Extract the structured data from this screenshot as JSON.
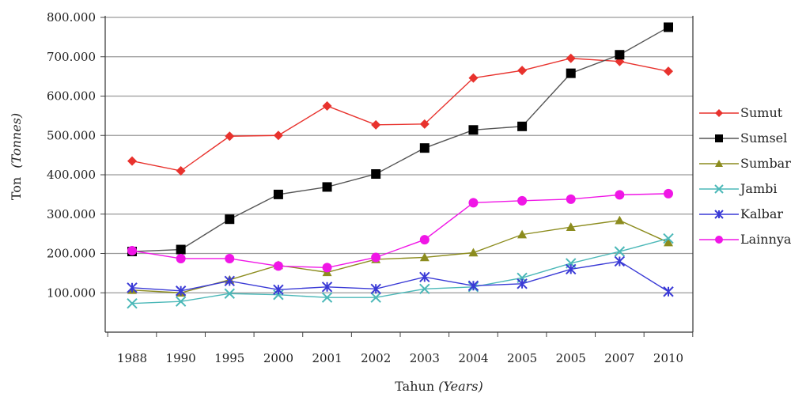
{
  "chart_data": {
    "type": "line",
    "title": "",
    "xlabel": "Tahun",
    "xlabel_italic": "(Years)",
    "ylabel": "Ton",
    "ylabel_italic": "(Tonnes)",
    "categories": [
      "1988",
      "1990",
      "1995",
      "2000",
      "2001",
      "2002",
      "2003",
      "2004",
      "2005",
      "2005",
      "2007",
      "2010"
    ],
    "ylim": [
      0,
      800000
    ],
    "yticks": [
      100000,
      200000,
      300000,
      400000,
      500000,
      600000,
      700000,
      800000
    ],
    "ytick_labels": [
      "100.000",
      "200.000",
      "300.000",
      "400.000",
      "500.000",
      "600.000",
      "700.000",
      "800.000"
    ],
    "grid": true,
    "legend_position": "right",
    "series": [
      {
        "name": "Sumut",
        "color": "#e8322d",
        "marker": "diamond",
        "values": [
          435000,
          410000,
          498000,
          500000,
          575000,
          527000,
          529000,
          646000,
          665000,
          696000,
          688000,
          663000
        ]
      },
      {
        "name": "Sumsel",
        "color": "#000000",
        "marker": "square",
        "values": [
          205000,
          210000,
          287000,
          350000,
          369000,
          402000,
          468000,
          514000,
          523000,
          658000,
          705000,
          775000
        ]
      },
      {
        "name": "Sumbar",
        "color": "#8c8c1e",
        "marker": "triangle",
        "values": [
          107000,
          100000,
          133000,
          170000,
          152000,
          185000,
          190000,
          202000,
          248000,
          267000,
          284000,
          228000
        ]
      },
      {
        "name": "Jambi",
        "color": "#4bb8b8",
        "marker": "x",
        "values": [
          73000,
          78000,
          98000,
          95000,
          88000,
          88000,
          110000,
          115000,
          138000,
          175000,
          205000,
          238000
        ]
      },
      {
        "name": "Kalbar",
        "color": "#3a3ad6",
        "marker": "star",
        "values": [
          113000,
          105000,
          130000,
          108000,
          115000,
          110000,
          140000,
          118000,
          123000,
          160000,
          180000,
          103000
        ]
      },
      {
        "name": "Lainnya",
        "color": "#f016e6",
        "marker": "circle",
        "values": [
          207000,
          187000,
          187000,
          168000,
          164000,
          190000,
          235000,
          329000,
          334000,
          338000,
          349000,
          352000
        ]
      }
    ]
  }
}
